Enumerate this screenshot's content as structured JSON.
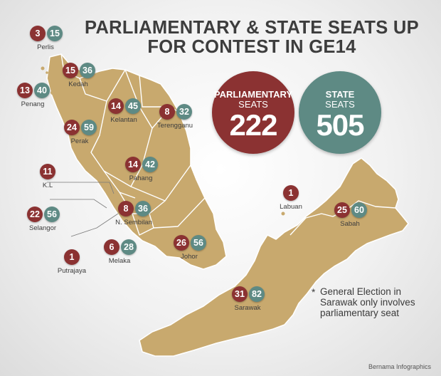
{
  "title": {
    "line1": "PARLIAMENTARY & STATE SEATS UP",
    "line2": "FOR CONTEST IN GE14"
  },
  "totals": {
    "parliamentary": {
      "label1": "PARLIAMENTARY",
      "label2": "SEATS",
      "value": "222"
    },
    "state": {
      "label1": "STATE",
      "label2": "SEATS",
      "value": "505"
    }
  },
  "colors": {
    "parliamentary": "#8b3232",
    "state": "#5e8a84",
    "land": "#c8a96e",
    "border": "#ffffff"
  },
  "states": {
    "perlis": {
      "name": "Perlis",
      "parliamentary": "3",
      "state": "15"
    },
    "kedah": {
      "name": "Kedah",
      "parliamentary": "15",
      "state": "36"
    },
    "penang": {
      "name": "Penang",
      "parliamentary": "13",
      "state": "40"
    },
    "kelantan": {
      "name": "Kelantan",
      "parliamentary": "14",
      "state": "45"
    },
    "terengganu": {
      "name": "Terengganu",
      "parliamentary": "8",
      "state": "32"
    },
    "perak": {
      "name": "Perak",
      "parliamentary": "24",
      "state": "59"
    },
    "pahang": {
      "name": "Pahang",
      "parliamentary": "14",
      "state": "42"
    },
    "kl": {
      "name": "K.L",
      "parliamentary": "11"
    },
    "selangor": {
      "name": "Selangor",
      "parliamentary": "22",
      "state": "56"
    },
    "nsembilan": {
      "name": "N. Sembilan",
      "parliamentary": "8",
      "state": "36"
    },
    "putrajaya": {
      "name": "Putrajaya",
      "parliamentary": "1"
    },
    "melaka": {
      "name": "Melaka",
      "parliamentary": "6",
      "state": "28"
    },
    "johor": {
      "name": "Johor",
      "parliamentary": "26",
      "state": "56"
    },
    "labuan": {
      "name": "Labuan",
      "parliamentary": "1"
    },
    "sabah": {
      "name": "Sabah",
      "parliamentary": "25",
      "state": "60"
    },
    "sarawak": {
      "name": "Sarawak",
      "parliamentary": "31",
      "state": "82"
    }
  },
  "note": {
    "star": "*",
    "text": "General Election in Sarawak only involves parliamentary seat"
  },
  "credit": "Bernama Infographics"
}
